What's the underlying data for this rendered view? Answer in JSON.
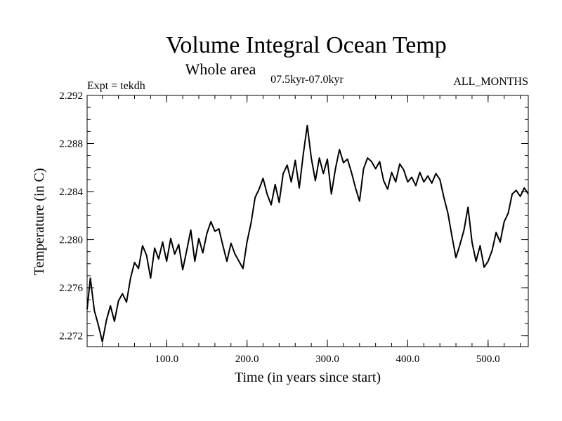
{
  "chart_data": {
    "type": "line",
    "title": "Volume Integral Ocean Temp",
    "subtitle": "Whole area",
    "period": "07.5kyr-07.0kyr",
    "expt": "Expt = tekdh",
    "months": "ALL_MONTHS",
    "xlabel": "Time (in years since start)",
    "ylabel": "Temperature (in C)",
    "xlim": [
      1,
      550
    ],
    "ylim": [
      2.2711,
      2.292
    ],
    "x_ticks": [
      100,
      200,
      300,
      400,
      500
    ],
    "x_tick_labels": [
      "100.0",
      "200.0",
      "300.0",
      "400.0",
      "500.0"
    ],
    "y_ticks": [
      2.272,
      2.276,
      2.28,
      2.284,
      2.288,
      2.292
    ],
    "y_tick_labels": [
      "2.272",
      "2.276",
      "2.280",
      "2.284",
      "2.288",
      "2.292"
    ],
    "x_minor_step": 20,
    "y_minor_step": 0.001,
    "line_color": "#000000",
    "series": [
      {
        "name": "Volume Integral Ocean Temp",
        "x": [
          1,
          5,
          10,
          15,
          20,
          25,
          30,
          35,
          40,
          45,
          50,
          55,
          60,
          65,
          70,
          75,
          80,
          85,
          90,
          95,
          100,
          105,
          110,
          115,
          120,
          125,
          130,
          135,
          140,
          145,
          150,
          155,
          160,
          165,
          170,
          175,
          180,
          185,
          190,
          195,
          200,
          205,
          210,
          215,
          220,
          225,
          230,
          235,
          240,
          245,
          250,
          255,
          260,
          265,
          270,
          275,
          280,
          285,
          290,
          295,
          300,
          305,
          310,
          315,
          320,
          325,
          330,
          335,
          340,
          345,
          350,
          355,
          360,
          365,
          370,
          375,
          380,
          385,
          390,
          395,
          400,
          405,
          410,
          415,
          420,
          425,
          430,
          435,
          440,
          445,
          450,
          455,
          460,
          465,
          470,
          475,
          480,
          485,
          490,
          495,
          500,
          505,
          510,
          515,
          520,
          525,
          530,
          535,
          540,
          545,
          550
        ],
        "values": [
          2.2742,
          2.2768,
          2.2741,
          2.2729,
          2.2715,
          2.2733,
          2.2745,
          2.2732,
          2.2749,
          2.2755,
          2.2748,
          2.2768,
          2.2781,
          2.2776,
          2.2795,
          2.2787,
          2.2768,
          2.2793,
          2.2784,
          2.2798,
          2.2782,
          2.2801,
          2.2788,
          2.2796,
          2.2775,
          2.2791,
          2.2808,
          2.2782,
          2.2801,
          2.2789,
          2.2805,
          2.2815,
          2.2807,
          2.2809,
          2.2795,
          2.2782,
          2.2797,
          2.2788,
          2.2782,
          2.2776,
          2.2798,
          2.2814,
          2.2835,
          2.2842,
          2.2851,
          2.2838,
          2.2829,
          2.2846,
          2.2831,
          2.2855,
          2.2862,
          2.2848,
          2.2866,
          2.2843,
          2.2871,
          2.2895,
          2.2868,
          2.2849,
          2.2868,
          2.2855,
          2.2867,
          2.2838,
          2.2859,
          2.2875,
          2.2864,
          2.2867,
          2.2856,
          2.2843,
          2.2832,
          2.2859,
          2.2868,
          2.2865,
          2.2859,
          2.2865,
          2.2849,
          2.2842,
          2.2856,
          2.2848,
          2.2863,
          2.2858,
          2.2848,
          2.2852,
          2.2845,
          2.2856,
          2.2848,
          2.2853,
          2.2847,
          2.2855,
          2.285,
          2.2835,
          2.2822,
          2.2803,
          2.2785,
          2.2796,
          2.2808,
          2.2827,
          2.2798,
          2.2782,
          2.2795,
          2.2777,
          2.2782,
          2.2791,
          2.2806,
          2.2798,
          2.2815,
          2.2822,
          2.2838,
          2.2841,
          2.2836,
          2.2843,
          2.2838
        ]
      }
    ]
  }
}
